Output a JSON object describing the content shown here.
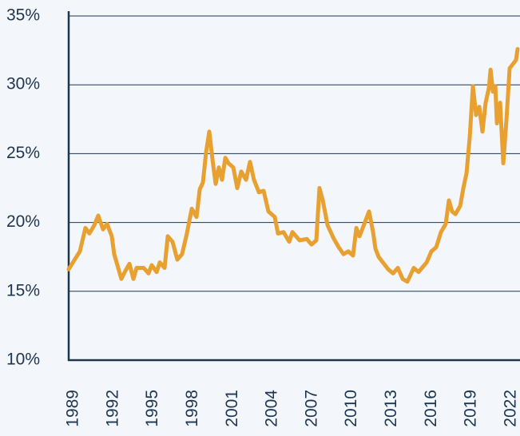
{
  "chart_data": {
    "type": "line",
    "x": [
      1988.64,
      1989.48,
      1989.9,
      1990.2,
      1990.57,
      1990.87,
      1991.23,
      1991.53,
      1991.89,
      1992.07,
      1992.37,
      1992.61,
      1992.92,
      1993.22,
      1993.52,
      1993.76,
      1994.3,
      1994.66,
      1994.9,
      1995.27,
      1995.51,
      1995.87,
      1996.11,
      1996.47,
      1996.83,
      1997.19,
      1997.55,
      1997.92,
      1998.28,
      1998.52,
      1998.76,
      1999.0,
      1999.24,
      1999.48,
      1999.72,
      1999.96,
      2000.2,
      2000.45,
      2000.69,
      2001.05,
      2001.35,
      2001.65,
      2002.01,
      2002.31,
      2002.61,
      2002.98,
      2003.34,
      2003.7,
      2004.18,
      2004.42,
      2004.84,
      2005.27,
      2005.51,
      2006.05,
      2006.59,
      2006.95,
      2007.31,
      2007.55,
      2007.8,
      2008.16,
      2008.64,
      2009.0,
      2009.36,
      2009.72,
      2010.08,
      2010.33,
      2010.57,
      2010.93,
      2011.29,
      2011.59,
      2011.77,
      2012.01,
      2012.49,
      2012.73,
      2013.1,
      2013.46,
      2013.82,
      2014.18,
      2014.66,
      2015.02,
      2015.63,
      2015.99,
      2016.35,
      2016.71,
      2017.07,
      2017.31,
      2017.55,
      2017.8,
      2018.16,
      2018.4,
      2018.64,
      2018.88,
      2019.12,
      2019.36,
      2019.6,
      2019.84,
      2020.08,
      2020.33,
      2020.45,
      2020.63,
      2020.81,
      2020.93,
      2021.17,
      2021.41,
      2021.65,
      2021.89,
      2022.13,
      2022.37,
      2022.49
    ],
    "series": [
      {
        "color": "#e8a030",
        "values": [
          16.6,
          17.9,
          19.6,
          19.2,
          19.8,
          20.5,
          19.5,
          19.9,
          19.0,
          17.7,
          16.7,
          15.9,
          16.5,
          17.0,
          15.9,
          16.7,
          16.7,
          16.3,
          16.9,
          16.4,
          17.1,
          16.7,
          19.0,
          18.6,
          17.3,
          17.7,
          19.2,
          21.0,
          20.4,
          22.4,
          22.9,
          25.1,
          26.6,
          24.6,
          22.8,
          24.0,
          23.1,
          24.7,
          24.3,
          24.0,
          22.5,
          23.7,
          23.1,
          24.4,
          23.1,
          22.2,
          22.3,
          20.8,
          20.4,
          19.2,
          19.3,
          18.6,
          19.3,
          18.7,
          18.8,
          18.4,
          18.7,
          22.5,
          21.6,
          19.8,
          18.8,
          18.2,
          17.7,
          17.9,
          17.6,
          19.6,
          19.0,
          19.9,
          20.8,
          19.3,
          18.1,
          17.5,
          16.9,
          16.6,
          16.3,
          16.7,
          15.9,
          15.7,
          16.7,
          16.4,
          17.1,
          17.9,
          18.2,
          19.3,
          19.9,
          21.6,
          20.8,
          20.6,
          21.2,
          22.5,
          23.6,
          26.2,
          29.9,
          27.8,
          28.4,
          26.6,
          28.7,
          29.8,
          31.1,
          29.5,
          29.9,
          27.2,
          28.7,
          24.3,
          27.5,
          31.2,
          31.5,
          31.8,
          32.6
        ]
      }
    ],
    "xlim": [
      1988.64,
      2022.67
    ],
    "xticks": [
      1989,
      1992,
      1995,
      1998,
      2001,
      2004,
      2007,
      2010,
      2013,
      2016,
      2019,
      2022
    ],
    "ylim": [
      10,
      35
    ],
    "yticks": [
      {
        "value": 10,
        "label": "10%"
      },
      {
        "value": 15,
        "label": "15%"
      },
      {
        "value": 20,
        "label": "20%"
      },
      {
        "value": 25,
        "label": "25%"
      },
      {
        "value": 30,
        "label": "30%"
      },
      {
        "value": 35,
        "label": "35%"
      }
    ],
    "grid": true
  }
}
